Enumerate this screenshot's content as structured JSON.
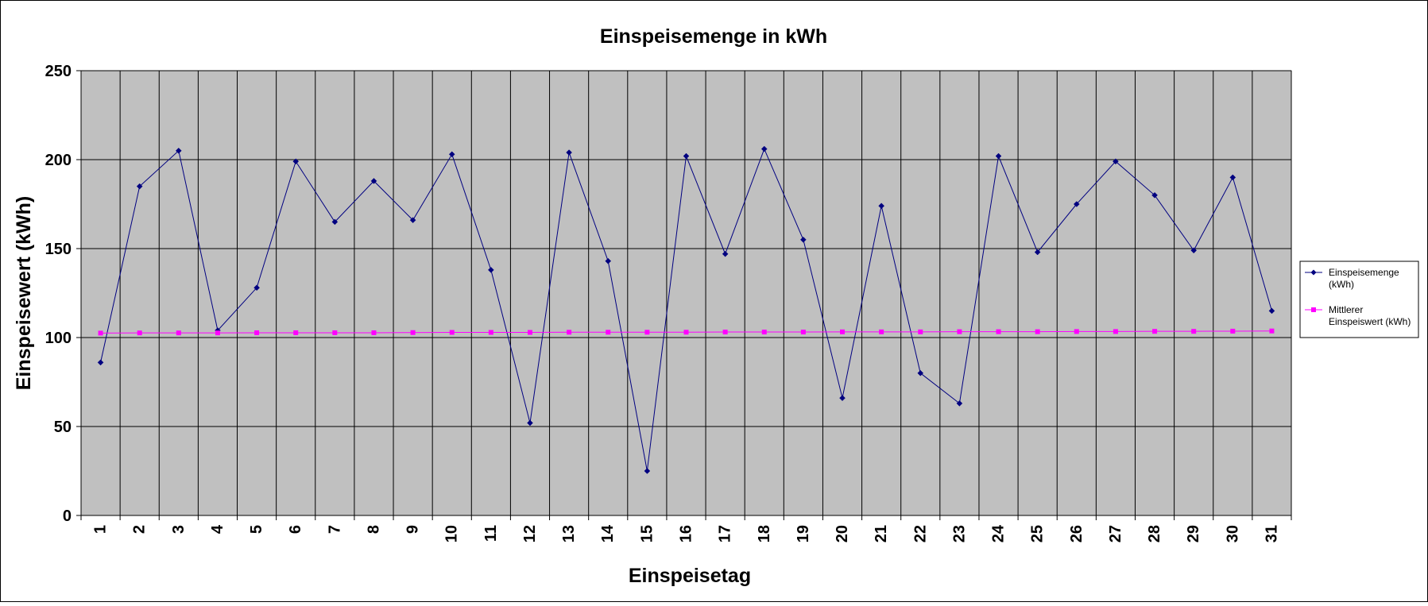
{
  "chart_data": {
    "type": "line",
    "title": "Einspeisemenge in kWh",
    "xlabel": "Einspeisetag",
    "ylabel": "Einspeisewert  (kWh)",
    "categories": [
      "1",
      "2",
      "3",
      "4",
      "5",
      "6",
      "7",
      "8",
      "9",
      "10",
      "11",
      "12",
      "13",
      "14",
      "15",
      "16",
      "17",
      "18",
      "19",
      "20",
      "21",
      "22",
      "23",
      "24",
      "25",
      "26",
      "27",
      "28",
      "29",
      "30",
      "31"
    ],
    "ylim": [
      0,
      250
    ],
    "yticks": [
      "0",
      "50",
      "100",
      "150",
      "200",
      "250"
    ],
    "grid": true,
    "legend_position": "right",
    "series": [
      {
        "name": "Einspeisemenge (kWh)",
        "legend_lines": [
          "Einspeisemenge",
          "(kWh)"
        ],
        "color": "#000080",
        "marker": "diamond",
        "values": [
          86,
          185,
          205,
          104,
          128,
          199,
          165,
          188,
          166,
          203,
          138,
          52,
          204,
          143,
          25,
          202,
          147,
          206,
          155,
          66,
          174,
          80,
          63,
          202,
          148,
          175,
          199,
          180,
          149,
          190,
          115
        ]
      },
      {
        "name": "Mittlerer Einspeiswert (kWh)",
        "legend_lines": [
          "Mittlerer",
          "Einspeiswert (kWh)"
        ],
        "color": "#ff00ff",
        "marker": "square",
        "values": [
          102.5,
          102.6,
          102.6,
          102.6,
          102.7,
          102.7,
          102.7,
          102.7,
          102.8,
          102.9,
          102.9,
          102.9,
          103.0,
          103.0,
          103.0,
          103.0,
          103.1,
          103.1,
          103.1,
          103.2,
          103.2,
          103.2,
          103.3,
          103.3,
          103.3,
          103.4,
          103.4,
          103.5,
          103.5,
          103.6,
          103.7
        ]
      }
    ],
    "colors": {
      "plot_background": "#c0c0c0",
      "gridline": "#000000",
      "page_background": "#ffffff"
    }
  }
}
